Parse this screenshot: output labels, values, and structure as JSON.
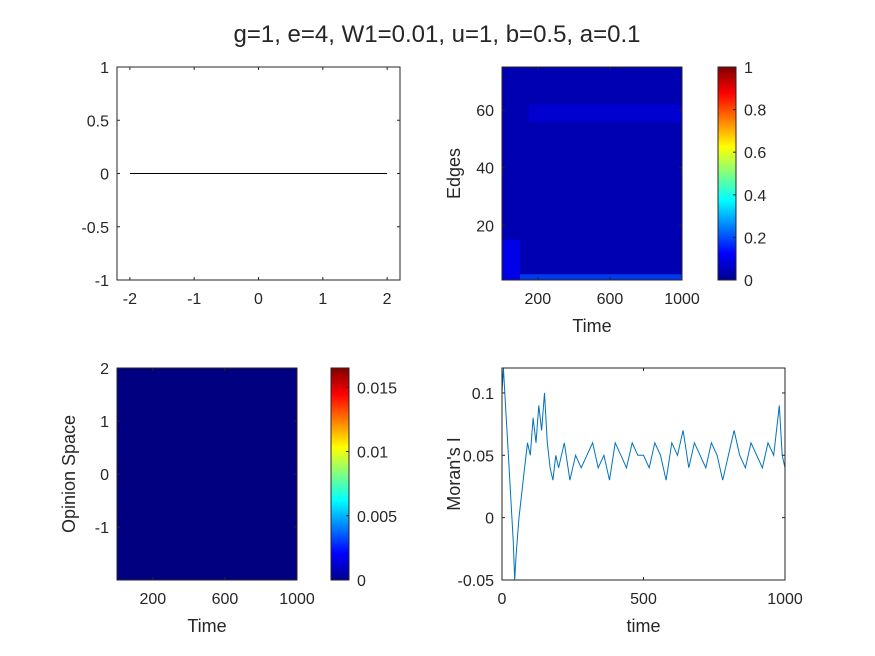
{
  "figure_title": "g=1, e=4, W1=0.01, u=1, b=0.5, a=0.1",
  "chart_data": [
    {
      "type": "line",
      "title": "",
      "xlabel": "",
      "ylabel": "",
      "xlim": [
        -2.2,
        2.2
      ],
      "ylim": [
        -1,
        1
      ],
      "xticks": [
        -2,
        -1,
        0,
        1,
        2
      ],
      "xtick_labels": [
        "-2",
        "-1",
        "0",
        "1",
        "2"
      ],
      "yticks": [
        -1,
        -0.5,
        0,
        0.5,
        1
      ],
      "ytick_labels": [
        "-1",
        "-0.5",
        "0",
        "0.5",
        "1"
      ],
      "grid": false,
      "series": [
        {
          "x": [
            -2,
            2
          ],
          "y": [
            0,
            0
          ],
          "color": "#000000"
        }
      ]
    },
    {
      "type": "heatmap",
      "title": "",
      "xlabel": "Time",
      "ylabel": "Edges",
      "xlim": [
        1,
        1000
      ],
      "ylim": [
        1,
        75
      ],
      "xticks": [
        200,
        600,
        1000
      ],
      "xtick_labels": [
        "200",
        "600",
        "1000"
      ],
      "yticks": [
        20,
        40,
        60
      ],
      "ytick_labels": [
        "20",
        "40",
        "60"
      ],
      "colormap": "jet",
      "colorbar": {
        "range": [
          0,
          1
        ],
        "ticks": [
          0,
          0.2,
          0.4,
          0.6,
          0.8,
          1
        ],
        "tick_labels": [
          "0",
          "0.2",
          "0.4",
          "0.6",
          "0.8",
          "1"
        ]
      },
      "background_value": 0.05,
      "features": [
        {
          "description_edges": [
            1,
            3
          ],
          "time": [
            100,
            1000
          ],
          "value": 0.2
        },
        {
          "description_edges": [
            56,
            62
          ],
          "time": [
            150,
            1000
          ],
          "value": 0.09
        },
        {
          "description_edges": [
            1,
            15
          ],
          "time": [
            1,
            100
          ],
          "value": 0.12
        }
      ]
    },
    {
      "type": "heatmap",
      "title": "",
      "xlabel": "Time",
      "ylabel": "Opinion Space",
      "xlim": [
        1,
        1000
      ],
      "ylim": [
        -2,
        2
      ],
      "xticks": [
        200,
        600,
        1000
      ],
      "xtick_labels": [
        "200",
        "600",
        "1000"
      ],
      "yticks": [
        -1,
        0,
        1,
        2
      ],
      "ytick_labels": [
        "-1",
        "0",
        "1",
        "2"
      ],
      "colormap": "jet",
      "colorbar": {
        "range": [
          0,
          0.0165
        ],
        "ticks": [
          0,
          0.005,
          0.01,
          0.015
        ],
        "tick_labels": [
          "0",
          "0.005",
          "0.01",
          "0.015"
        ]
      },
      "background_value": 0
    },
    {
      "type": "line",
      "title": "",
      "xlabel": "time",
      "ylabel": "Moran's I",
      "xlim": [
        0,
        1000
      ],
      "ylim": [
        -0.05,
        0.12
      ],
      "xticks": [
        0,
        500,
        1000
      ],
      "xtick_labels": [
        "0",
        "500",
        "1000"
      ],
      "yticks": [
        -0.05,
        0,
        0.05,
        0.1
      ],
      "ytick_labels": [
        "-0.05",
        "0",
        "0.05",
        "0.1"
      ],
      "grid": false,
      "series": [
        {
          "color": "#0072BD",
          "x": [
            0,
            5,
            10,
            15,
            20,
            25,
            30,
            35,
            40,
            45,
            50,
            60,
            70,
            80,
            90,
            100,
            110,
            120,
            130,
            140,
            150,
            160,
            170,
            180,
            190,
            200,
            220,
            240,
            260,
            280,
            300,
            320,
            340,
            360,
            380,
            400,
            420,
            440,
            460,
            480,
            500,
            520,
            540,
            560,
            580,
            600,
            620,
            640,
            660,
            680,
            700,
            720,
            740,
            760,
            780,
            800,
            820,
            840,
            860,
            880,
            900,
            920,
            940,
            960,
            970,
            980,
            990,
            1000
          ],
          "y": [
            0.1,
            0.12,
            0.1,
            0.08,
            0.06,
            0.04,
            0.02,
            0.0,
            -0.02,
            -0.05,
            -0.03,
            0.0,
            0.02,
            0.04,
            0.06,
            0.05,
            0.08,
            0.06,
            0.09,
            0.07,
            0.1,
            0.06,
            0.04,
            0.03,
            0.05,
            0.04,
            0.06,
            0.03,
            0.05,
            0.04,
            0.05,
            0.06,
            0.04,
            0.05,
            0.03,
            0.06,
            0.05,
            0.04,
            0.06,
            0.05,
            0.05,
            0.04,
            0.06,
            0.05,
            0.03,
            0.06,
            0.05,
            0.07,
            0.04,
            0.06,
            0.05,
            0.04,
            0.06,
            0.05,
            0.03,
            0.05,
            0.07,
            0.05,
            0.04,
            0.06,
            0.05,
            0.04,
            0.06,
            0.05,
            0.07,
            0.09,
            0.05,
            0.04
          ]
        }
      ]
    }
  ]
}
